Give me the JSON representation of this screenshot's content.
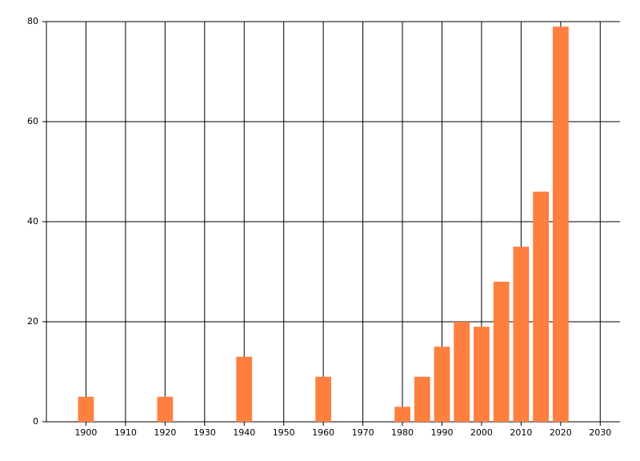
{
  "chart_data": {
    "type": "bar",
    "x": [
      1900,
      1920,
      1940,
      1960,
      1980,
      1985,
      1990,
      1995,
      2000,
      2005,
      2010,
      2015,
      2020
    ],
    "values": [
      5,
      5,
      13,
      9,
      3,
      9,
      15,
      20,
      19,
      28,
      35,
      46,
      79
    ],
    "color": "#ff7f3f",
    "xlim": [
      1890,
      2035
    ],
    "xticks": [
      1900,
      1910,
      1920,
      1930,
      1940,
      1950,
      1960,
      1970,
      1980,
      1990,
      2000,
      2010,
      2020,
      2030
    ],
    "ylim": [
      0,
      80
    ],
    "yticks": [
      0,
      20,
      40,
      60,
      80
    ],
    "grid": true
  }
}
